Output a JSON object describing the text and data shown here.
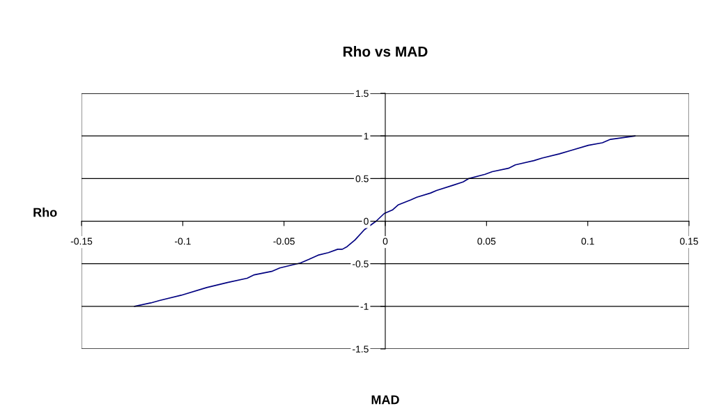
{
  "chart_data": {
    "type": "line",
    "title": "Rho vs MAD",
    "xlabel": "MAD",
    "ylabel": "Rho",
    "series": [
      {
        "color": "#000080",
        "x": [
          -0.1238,
          -0.1158,
          -0.1112,
          -0.1008,
          -0.0882,
          -0.0779,
          -0.0682,
          -0.0647,
          -0.0561,
          -0.0521,
          -0.0418,
          -0.0378,
          -0.0332,
          -0.0281,
          -0.0235,
          -0.0212,
          -0.0189,
          -0.0149,
          -0.0103,
          -0.0045,
          -0.0005,
          0.0035,
          0.0063,
          0.0126,
          0.0155,
          0.0224,
          0.0253,
          0.0333,
          0.0384,
          0.0413,
          0.0493,
          0.0528,
          0.0608,
          0.0642,
          0.0734,
          0.0774,
          0.086,
          0.0917,
          0.1003,
          0.1072,
          0.1112,
          0.1233
        ],
        "values": [
          -1.0,
          -0.96,
          -0.93,
          -0.87,
          -0.78,
          -0.72,
          -0.67,
          -0.63,
          -0.59,
          -0.55,
          -0.49,
          -0.45,
          -0.4,
          -0.37,
          -0.33,
          -0.33,
          -0.3,
          -0.22,
          -0.1,
          0.0,
          0.09,
          0.13,
          0.19,
          0.25,
          0.28,
          0.33,
          0.36,
          0.42,
          0.46,
          0.5,
          0.55,
          0.58,
          0.62,
          0.66,
          0.71,
          0.74,
          0.79,
          0.83,
          0.89,
          0.92,
          0.96,
          1.0
        ]
      }
    ],
    "xlim": [
      -0.15,
      0.15
    ],
    "xticks": [
      -0.15,
      -0.1,
      -0.05,
      0,
      0.05,
      0.1,
      0.15
    ],
    "ylim": [
      -1.5,
      1.5
    ],
    "yticks": [
      -1.5,
      -1,
      -0.5,
      0,
      0.5,
      1,
      1.5
    ],
    "grid": "y",
    "legend": false,
    "marker": "none",
    "line_style": "solid"
  }
}
